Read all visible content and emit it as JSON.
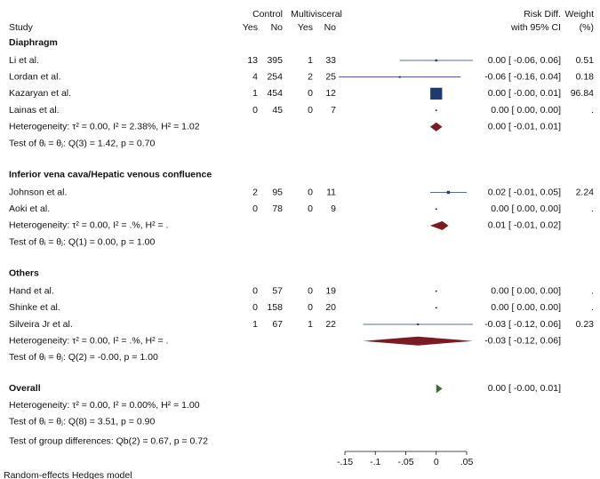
{
  "chart_data": {
    "type": "forest",
    "headers": {
      "study": "Study",
      "control": "Control",
      "multi": "Multivisceral",
      "control_yes": "Yes",
      "control_no": "No",
      "multi_yes": "Yes",
      "multi_no": "No",
      "effect": "Risk Diff.",
      "ci": "with 95% CI",
      "weight": "Weight",
      "weight_unit": "(%)"
    },
    "groups": [
      {
        "name": "Diaphragm",
        "studies": [
          {
            "name": "Li et al.",
            "control": [
              "13",
              "395"
            ],
            "multi": [
              "1",
              "33"
            ],
            "effect": 0.0,
            "ci": [
              -0.06,
              0.06
            ],
            "label": "0.00 [ -0.06, 0.06]",
            "weight": 0.51
          },
          {
            "name": "Lordan et al.",
            "control": [
              "4",
              "254"
            ],
            "multi": [
              "2",
              "25"
            ],
            "effect": -0.06,
            "ci": [
              -0.16,
              0.04
            ],
            "label": "-0.06 [ -0.16, 0.04]",
            "weight": 0.18
          },
          {
            "name": "Kazaryan et al.",
            "control": [
              "1",
              "454"
            ],
            "multi": [
              "0",
              "12"
            ],
            "effect": 0.0,
            "ci": [
              -0.0,
              0.01
            ],
            "label": "0.00 [ -0.00, 0.01]",
            "weight": 96.84
          },
          {
            "name": "Lainas et al.",
            "control": [
              "0",
              "45"
            ],
            "multi": [
              "0",
              "7"
            ],
            "effect": 0.0,
            "ci": [
              0.0,
              0.0
            ],
            "label": "0.00 [  0.00, 0.00]",
            "weight": "."
          }
        ],
        "heterogeneity": "Heterogeneity: τ² = 0.00, I² = 2.38%, H² = 1.02",
        "summary": {
          "effect": 0.0,
          "ci": [
            -0.01,
            0.01
          ],
          "label": "0.00 [ -0.01, 0.01]"
        },
        "test": "Test of θᵢ = θⱼ: Q(3) = 1.42, p = 0.70"
      },
      {
        "name": "Inferior vena cava/Hepatic venous confluence",
        "studies": [
          {
            "name": "Johnson et al.",
            "control": [
              "2",
              "95"
            ],
            "multi": [
              "0",
              "11"
            ],
            "effect": 0.02,
            "ci": [
              -0.01,
              0.05
            ],
            "label": "0.02 [ -0.01, 0.05]",
            "weight": 2.24
          },
          {
            "name": "Aoki et al.",
            "control": [
              "0",
              "78"
            ],
            "multi": [
              "0",
              "9"
            ],
            "effect": 0.0,
            "ci": [
              0.0,
              0.0
            ],
            "label": "0.00 [  0.00, 0.00]",
            "weight": "."
          }
        ],
        "heterogeneity": "Heterogeneity: τ² = 0.00, I² = .%, H² = .",
        "summary": {
          "effect": 0.01,
          "ci": [
            -0.01,
            0.02
          ],
          "label": "0.01 [ -0.01, 0.02]"
        },
        "test": "Test of θᵢ = θⱼ: Q(1) = 0.00, p = 1.00"
      },
      {
        "name": "Others",
        "studies": [
          {
            "name": "Hand et al.",
            "control": [
              "0",
              "57"
            ],
            "multi": [
              "0",
              "19"
            ],
            "effect": 0.0,
            "ci": [
              0.0,
              0.0
            ],
            "label": "0.00 [  0.00, 0.00]",
            "weight": "."
          },
          {
            "name": "Shinke et al.",
            "control": [
              "0",
              "158"
            ],
            "multi": [
              "0",
              "20"
            ],
            "effect": 0.0,
            "ci": [
              0.0,
              0.0
            ],
            "label": "0.00 [  0.00, 0.00]",
            "weight": "."
          },
          {
            "name": "Silveira Jr et al.",
            "control": [
              "1",
              "67"
            ],
            "multi": [
              "1",
              "22"
            ],
            "effect": -0.03,
            "ci": [
              -0.12,
              0.06
            ],
            "label": "-0.03 [ -0.12, 0.06]",
            "weight": 0.23
          }
        ],
        "heterogeneity": "Heterogeneity: τ² = 0.00, I² = .%, H² = .",
        "summary": {
          "effect": -0.03,
          "ci": [
            -0.12,
            0.06
          ],
          "label": "-0.03 [ -0.12, 0.06]"
        },
        "test": "Test of θᵢ = θⱼ: Q(2) = -0.00, p = 1.00"
      }
    ],
    "overall": {
      "name": "Overall",
      "effect": 0.0,
      "ci": [
        -0.0,
        0.01
      ],
      "label": "0.00 [ -0.00, 0.01]",
      "heterogeneity": "Heterogeneity: τ² = 0.00, I² = 0.00%, H² = 1.00",
      "test": "Test of θᵢ = θⱼ: Q(8) = 3.51, p = 0.90"
    },
    "group_test": "Test of group differences: Qb(2) = 0.67, p = 0.72",
    "xlim": [
      -0.15,
      0.05
    ],
    "xticks": [
      {
        "value": -0.15,
        "label": "-.15"
      },
      {
        "value": -0.1,
        "label": "-.1"
      },
      {
        "value": -0.05,
        "label": "-.05"
      },
      0,
      {
        "value": 0.05,
        "label": ".05"
      }
    ],
    "colors": {
      "study": "#1f3b6e",
      "subgroup": "#7b1a22",
      "overall": "#3d6b32"
    },
    "footer": "Random-effects Hedges model"
  }
}
